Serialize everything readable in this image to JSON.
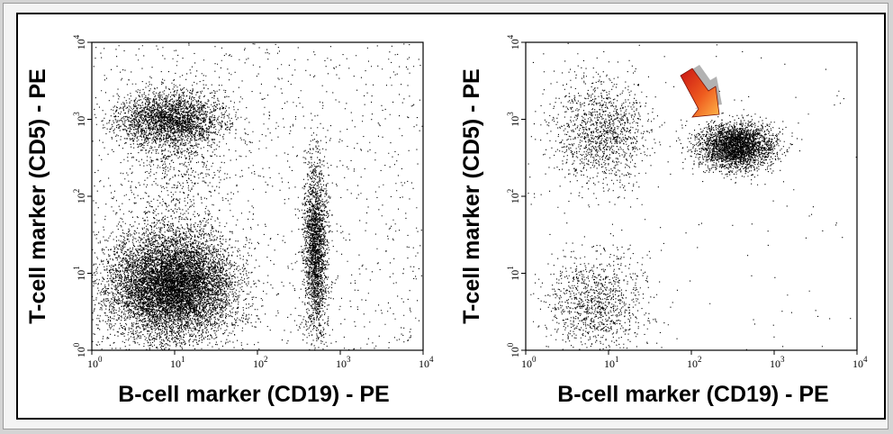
{
  "chart_data": [
    {
      "type": "scatter",
      "title": "",
      "xlabel": "B-cell marker (CD19) - PE",
      "ylabel": "T-cell marker (CD5) - PE",
      "xscale": "log",
      "yscale": "log",
      "xlim": [
        1,
        10000
      ],
      "ylim": [
        1,
        10000
      ],
      "xticks": [
        "10^0",
        "10^1",
        "10^2",
        "10^3",
        "10^4"
      ],
      "yticks": [
        "10^0",
        "10^1",
        "10^2",
        "10^3",
        "10^4"
      ],
      "grid": false,
      "populations": [
        {
          "center_x": 9,
          "center_y": 7,
          "spread_x_decades": 0.38,
          "spread_y_decades": 0.35,
          "events": 9000
        },
        {
          "center_x": 9,
          "center_y": 1000,
          "spread_x_decades": 0.32,
          "spread_y_decades": 0.18,
          "events": 2600
        },
        {
          "center_x": 500,
          "center_y": 20,
          "spread_x_decades": 0.07,
          "spread_y_decades": 0.55,
          "events": 2200
        },
        {
          "center_x": 10,
          "center_y": 250,
          "spread_x_decades": 0.3,
          "spread_y_decades": 0.5,
          "events": 600
        }
      ],
      "background_events": 1200
    },
    {
      "type": "scatter",
      "title": "",
      "xlabel": "B-cell marker (CD19) - PE",
      "ylabel": "T-cell marker (CD5) - PE",
      "xscale": "log",
      "yscale": "log",
      "xlim": [
        1,
        10000
      ],
      "ylim": [
        1,
        10000
      ],
      "xticks": [
        "10^0",
        "10^1",
        "10^2",
        "10^3",
        "10^4"
      ],
      "yticks": [
        "10^0",
        "10^1",
        "10^2",
        "10^3",
        "10^4"
      ],
      "grid": false,
      "annotation": "arrow pointing to CD19+CD5+ population",
      "populations": [
        {
          "center_x": 8,
          "center_y": 700,
          "spread_x_decades": 0.3,
          "spread_y_decades": 0.35,
          "events": 1300
        },
        {
          "center_x": 7,
          "center_y": 4,
          "spread_x_decades": 0.3,
          "spread_y_decades": 0.33,
          "events": 1100
        },
        {
          "center_x": 350,
          "center_y": 450,
          "spread_x_decades": 0.22,
          "spread_y_decades": 0.15,
          "events": 3000
        }
      ],
      "background_events": 120
    }
  ]
}
